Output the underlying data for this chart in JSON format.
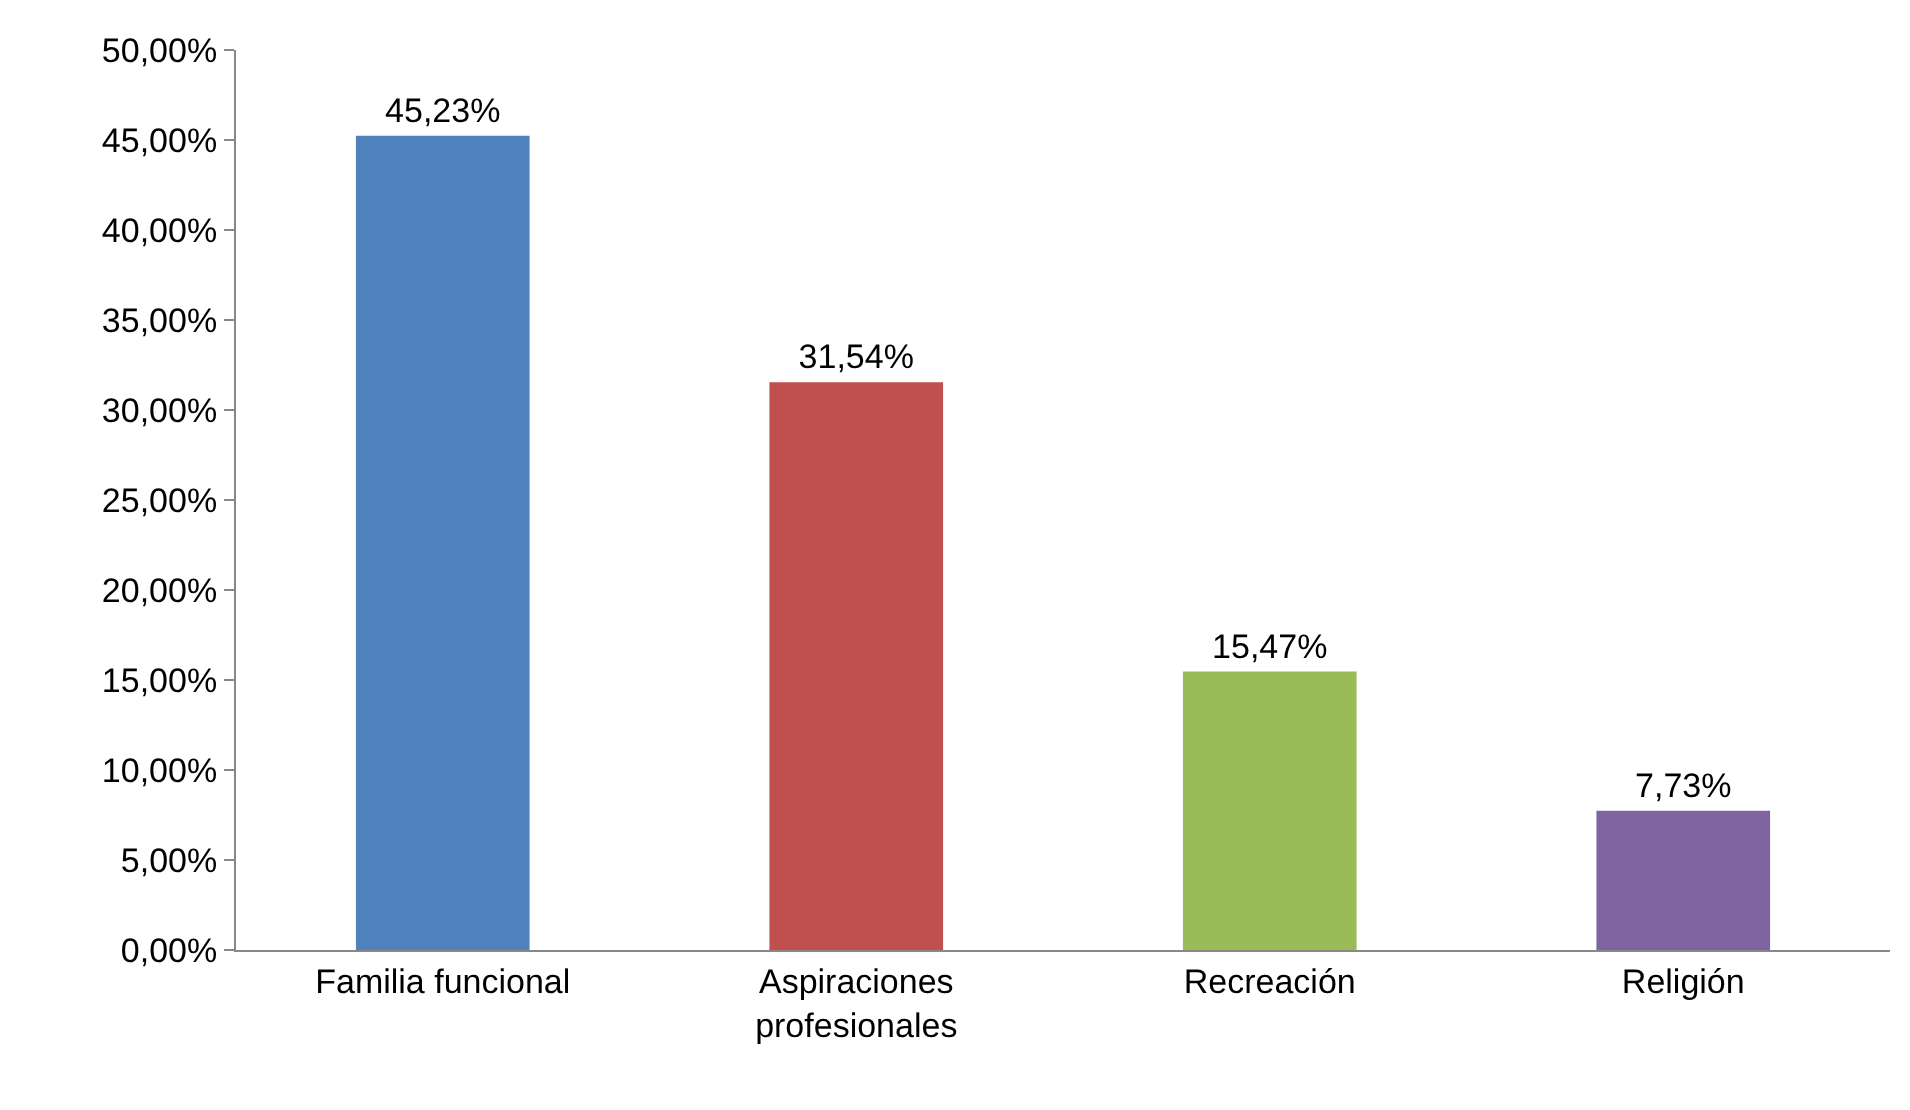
{
  "chart_data": {
    "type": "bar",
    "categories": [
      "Familia funcional",
      "Aspiraciones profesionales",
      "Recreación",
      "Religión"
    ],
    "values": [
      45.23,
      31.54,
      15.47,
      7.73
    ],
    "colors": [
      "#4f81bd",
      "#c0504d",
      "#9bbb59",
      "#8064a2"
    ],
    "value_labels": [
      "45,23%",
      "31,54%",
      "15,47%",
      "7,73%"
    ],
    "ylim": [
      0,
      50
    ],
    "yticks": [
      {
        "value": 0,
        "label": "0,00%"
      },
      {
        "value": 5,
        "label": "5,00%"
      },
      {
        "value": 10,
        "label": "10,00%"
      },
      {
        "value": 15,
        "label": "15,00%"
      },
      {
        "value": 20,
        "label": "20,00%"
      },
      {
        "value": 25,
        "label": "25,00%"
      },
      {
        "value": 30,
        "label": "30,00%"
      },
      {
        "value": 35,
        "label": "35,00%"
      },
      {
        "value": 40,
        "label": "40,00%"
      },
      {
        "value": 45,
        "label": "45,00%"
      },
      {
        "value": 50,
        "label": "50,00%"
      }
    ],
    "grid": false
  }
}
